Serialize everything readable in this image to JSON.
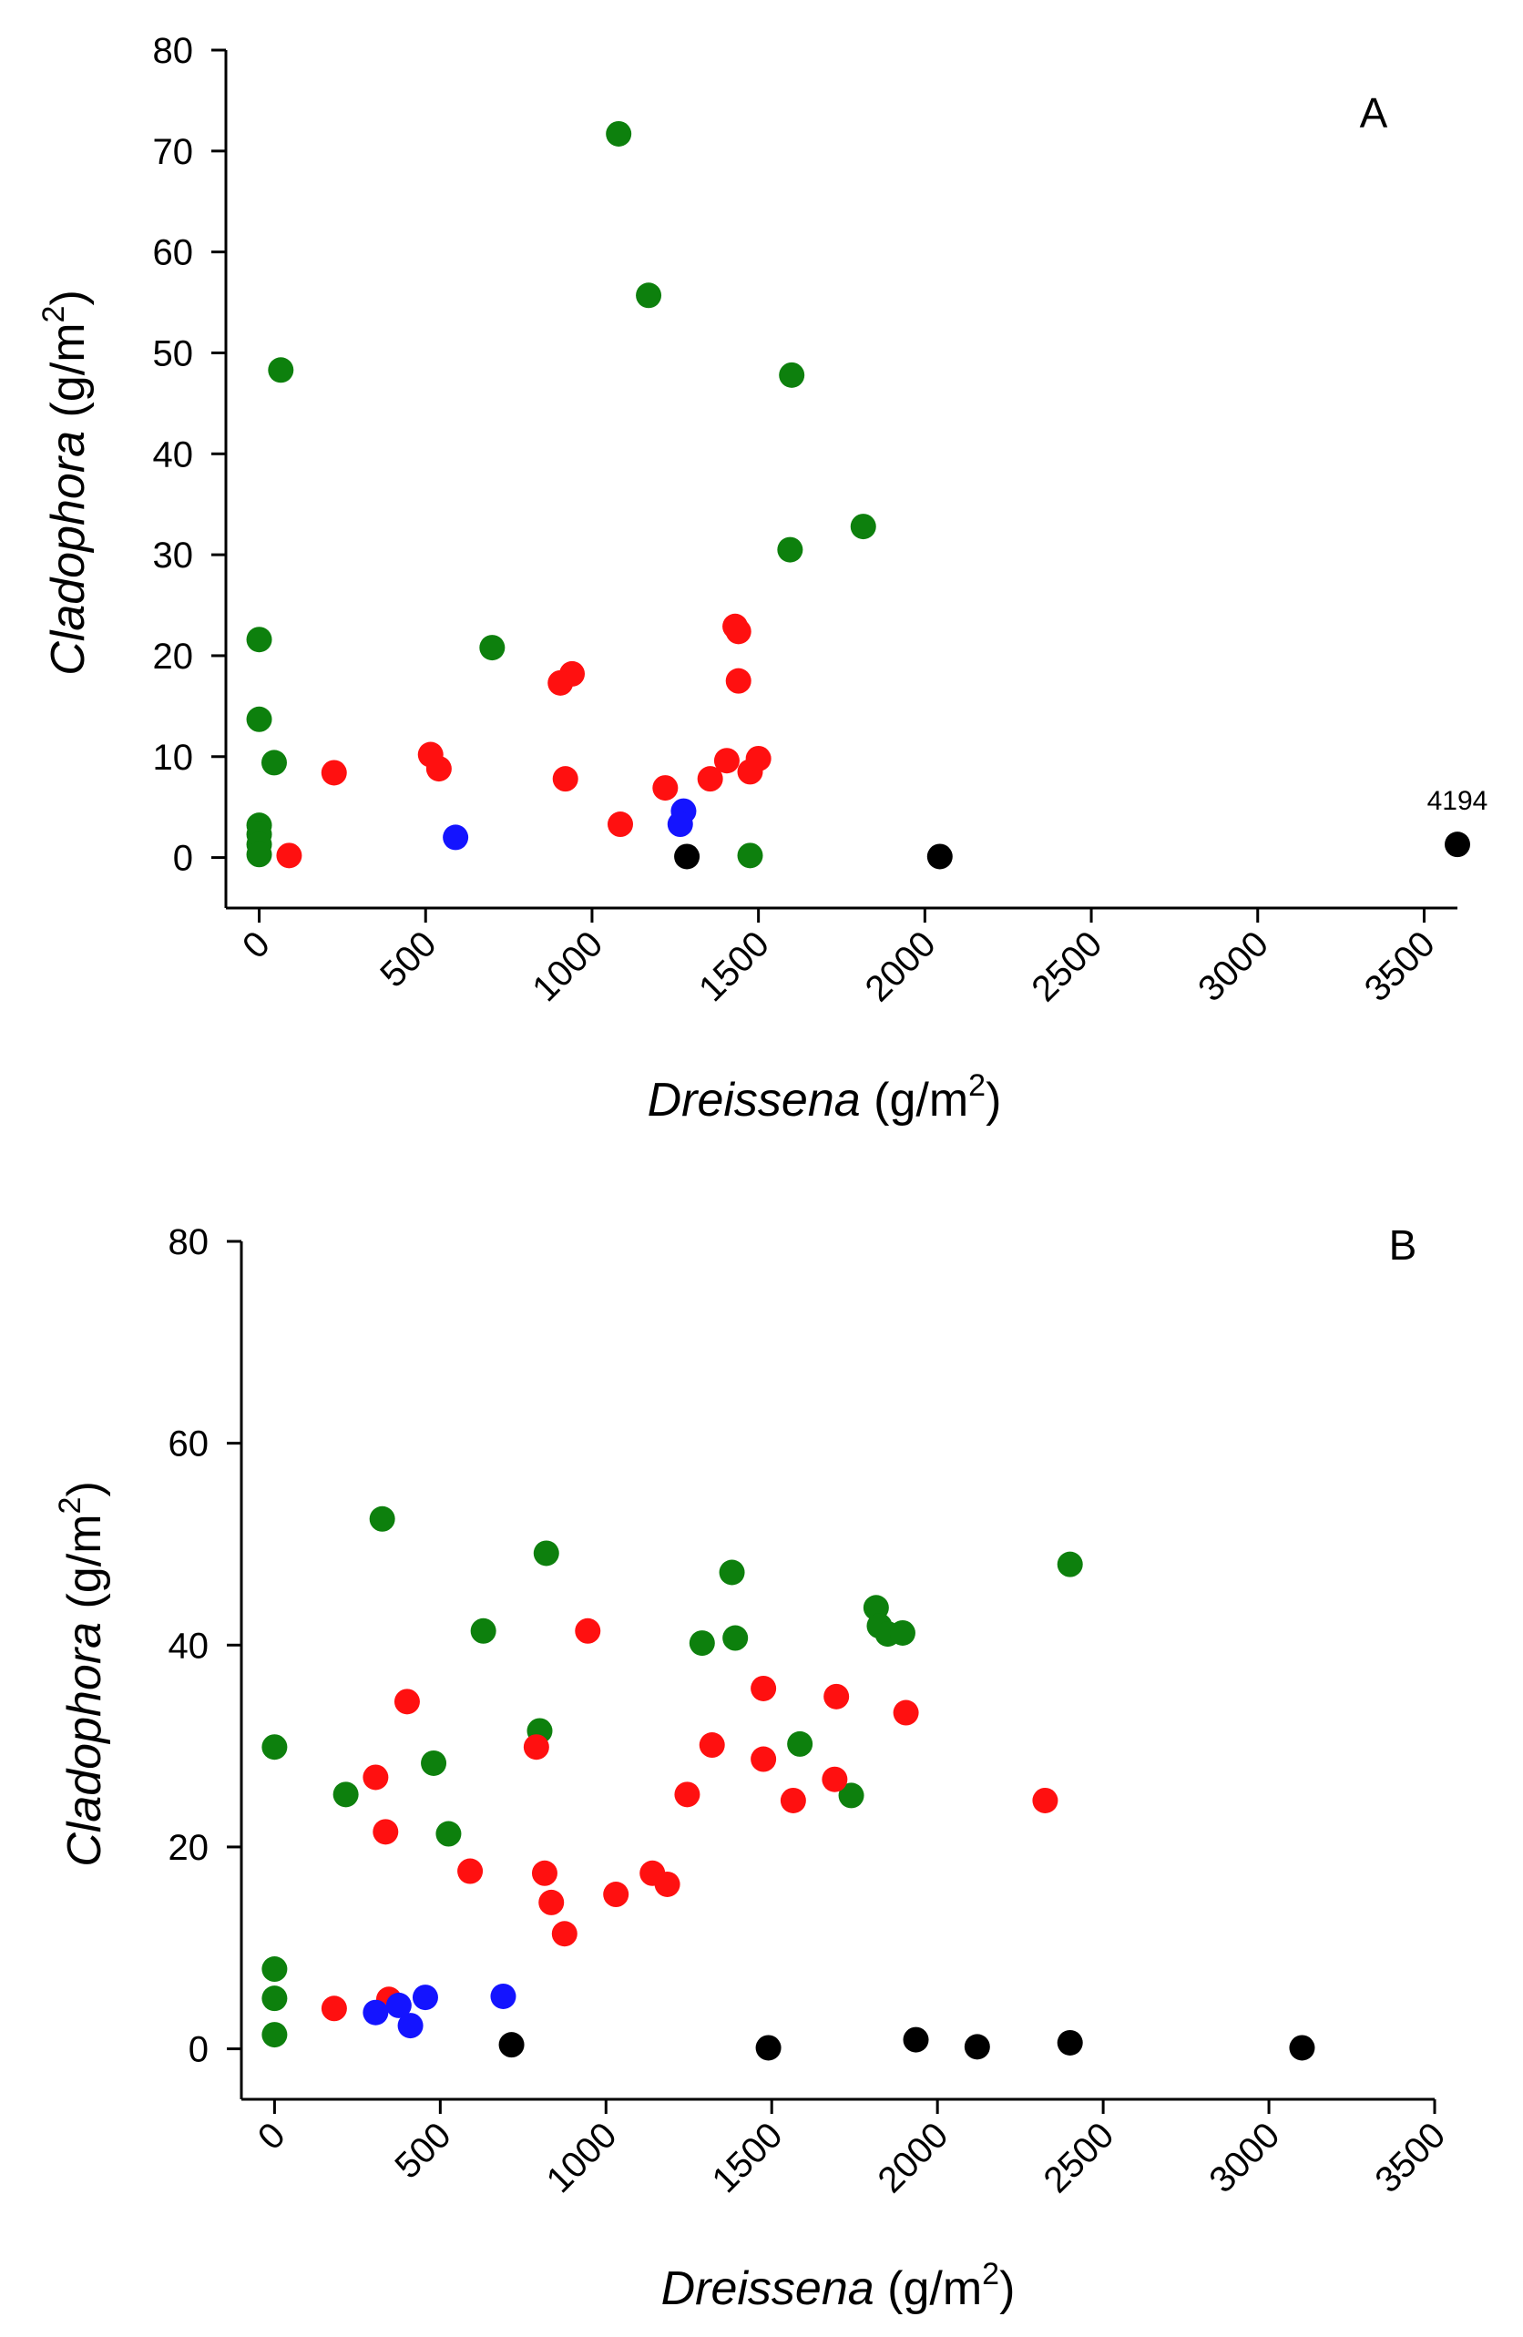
{
  "colors": {
    "green": "#0d800d",
    "red": "#ff1010",
    "blue": "#1414ff",
    "black": "#000000"
  },
  "chart_data": [
    {
      "type": "scatter",
      "panel_label": "A",
      "xlabel_italic": "Dreissena",
      "xlabel_unit": " (g/m",
      "xlabel_sup": "2",
      "xlabel_close": ")",
      "ylabel_italic": "Cladophora",
      "ylabel_unit": " (g/m",
      "ylabel_sup": "2",
      "ylabel_close": ")",
      "xlim": [
        -100,
        3600
      ],
      "ylim": [
        -5,
        80
      ],
      "xticks": [
        "0",
        "500",
        "1000",
        "1500",
        "2000",
        "2500",
        "3000",
        "3500"
      ],
      "xtick_values": [
        0,
        500,
        1000,
        1500,
        2000,
        2500,
        3000,
        3500
      ],
      "yticks": [
        "0",
        "10",
        "20",
        "30",
        "40",
        "50",
        "60",
        "70",
        "80"
      ],
      "ytick_values": [
        0,
        10,
        20,
        30,
        40,
        50,
        60,
        70,
        80
      ],
      "annotations": [
        {
          "text": "4194",
          "x": 3600,
          "y": 1.3
        }
      ],
      "series": [
        {
          "color": "green",
          "points": [
            [
              1080,
              71.7
            ],
            [
              1170,
              55.7
            ],
            [
              65,
              48.3
            ],
            [
              1600,
              47.8
            ],
            [
              1815,
              32.8
            ],
            [
              1595,
              30.5
            ],
            [
              700,
              20.8
            ],
            [
              0,
              21.6
            ],
            [
              0,
              13.7
            ],
            [
              45,
              9.4
            ],
            [
              0,
              3.2
            ],
            [
              0,
              2.3
            ],
            [
              0,
              1.3
            ],
            [
              0,
              0.3
            ],
            [
              1475,
              0.2
            ]
          ]
        },
        {
          "color": "red",
          "points": [
            [
              1430,
              22.9
            ],
            [
              1440,
              22.4
            ],
            [
              1440,
              17.5
            ],
            [
              940,
              18.2
            ],
            [
              905,
              17.3
            ],
            [
              515,
              10.2
            ],
            [
              540,
              8.8
            ],
            [
              225,
              8.4
            ],
            [
              920,
              7.8
            ],
            [
              1220,
              6.9
            ],
            [
              1355,
              7.8
            ],
            [
              1405,
              9.6
            ],
            [
              1475,
              8.5
            ],
            [
              1500,
              9.8
            ],
            [
              1085,
              3.3
            ],
            [
              90,
              0.2
            ]
          ]
        },
        {
          "color": "blue",
          "points": [
            [
              590,
              2.0
            ],
            [
              1275,
              4.6
            ],
            [
              1265,
              3.3
            ]
          ]
        },
        {
          "color": "black",
          "points": [
            [
              1285,
              0.1
            ],
            [
              2045,
              0.1
            ],
            [
              3600,
              1.3
            ]
          ]
        }
      ]
    },
    {
      "type": "scatter",
      "panel_label": "B",
      "xlabel_italic": "Dreissena",
      "xlabel_unit": " (g/m",
      "xlabel_sup": "2",
      "xlabel_close": ")",
      "ylabel_italic": "Cladophora",
      "ylabel_unit": " (g/m",
      "ylabel_sup": "2",
      "ylabel_close": ")",
      "xlim": [
        -100,
        3500
      ],
      "ylim": [
        -5,
        80
      ],
      "xticks": [
        "0",
        "500",
        "1000",
        "1500",
        "2000",
        "2500",
        "3000",
        "3500"
      ],
      "xtick_values": [
        0,
        500,
        1000,
        1500,
        2000,
        2500,
        3000,
        3500
      ],
      "yticks": [
        "0",
        "20",
        "40",
        "60",
        "80"
      ],
      "ytick_values": [
        0,
        20,
        40,
        60,
        80
      ],
      "annotations": [],
      "series": [
        {
          "color": "green",
          "points": [
            [
              325,
              52.5
            ],
            [
              820,
              49.1
            ],
            [
              2400,
              48.0
            ],
            [
              1380,
              47.2
            ],
            [
              1815,
              43.7
            ],
            [
              1825,
              41.9
            ],
            [
              1850,
              41.1
            ],
            [
              1895,
              41.2
            ],
            [
              630,
              41.4
            ],
            [
              1290,
              40.2
            ],
            [
              1390,
              40.7
            ],
            [
              800,
              31.5
            ],
            [
              0,
              29.9
            ],
            [
              1585,
              30.2
            ],
            [
              480,
              28.3
            ],
            [
              215,
              25.2
            ],
            [
              1740,
              25.1
            ],
            [
              525,
              21.3
            ],
            [
              0,
              7.9
            ],
            [
              0,
              5.0
            ],
            [
              0,
              1.4
            ]
          ]
        },
        {
          "color": "red",
          "points": [
            [
              945,
              41.4
            ],
            [
              400,
              34.4
            ],
            [
              1475,
              35.7
            ],
            [
              1695,
              34.9
            ],
            [
              1905,
              33.3
            ],
            [
              305,
              26.9
            ],
            [
              790,
              29.9
            ],
            [
              1320,
              30.1
            ],
            [
              1475,
              28.7
            ],
            [
              1690,
              26.7
            ],
            [
              1565,
              24.6
            ],
            [
              1245,
              25.2
            ],
            [
              2325,
              24.6
            ],
            [
              335,
              21.5
            ],
            [
              590,
              17.6
            ],
            [
              815,
              17.4
            ],
            [
              1140,
              17.4
            ],
            [
              1185,
              16.3
            ],
            [
              835,
              14.5
            ],
            [
              875,
              11.4
            ],
            [
              1030,
              15.3
            ],
            [
              180,
              4.0
            ],
            [
              345,
              4.9
            ]
          ]
        },
        {
          "color": "blue",
          "points": [
            [
              305,
              3.6
            ],
            [
              375,
              4.3
            ],
            [
              410,
              2.3
            ],
            [
              455,
              5.1
            ],
            [
              690,
              5.2
            ]
          ]
        },
        {
          "color": "black",
          "points": [
            [
              715,
              0.4
            ],
            [
              1490,
              0.1
            ],
            [
              1935,
              0.9
            ],
            [
              2120,
              0.2
            ],
            [
              2400,
              0.6
            ],
            [
              3100,
              0.1
            ]
          ]
        }
      ]
    }
  ]
}
